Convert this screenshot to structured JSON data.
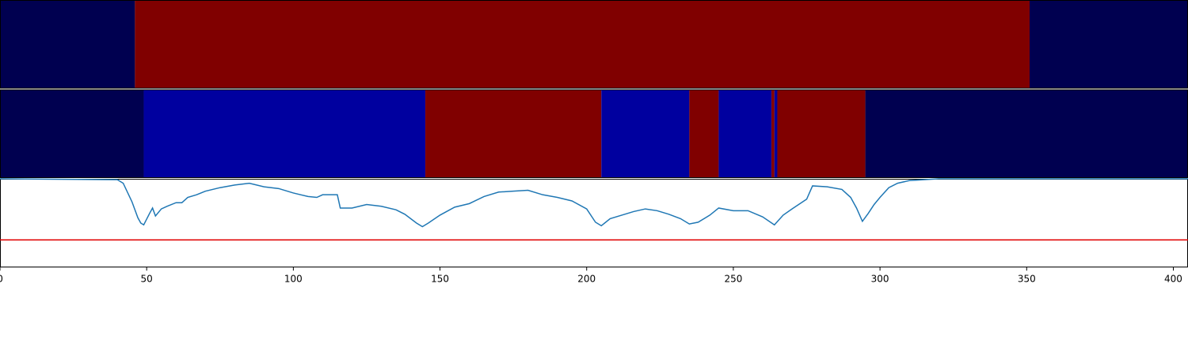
{
  "chart_data": [
    {
      "type": "segments",
      "xlim": [
        0,
        405
      ],
      "starts": [
        0,
        46,
        351
      ],
      "ends": [
        46,
        351,
        405
      ],
      "colors": [
        "#000050",
        "#800000",
        "#000050"
      ]
    },
    {
      "type": "segments",
      "xlim": [
        0,
        405
      ],
      "starts": [
        0,
        49,
        145,
        205,
        235,
        245,
        263,
        264,
        265,
        295
      ],
      "ends": [
        49,
        145,
        205,
        235,
        245,
        263,
        264,
        265,
        295,
        405
      ],
      "colors": [
        "#000050",
        "#00009f",
        "#800000",
        "#00009f",
        "#800000",
        "#00009f",
        "#800000",
        "#00009f",
        "#800000",
        "#000050"
      ]
    },
    {
      "type": "line",
      "xlim": [
        0,
        405
      ],
      "ylim": [
        0,
        1
      ],
      "xticks": [
        0,
        50,
        100,
        150,
        200,
        250,
        300,
        350,
        400
      ],
      "x": [
        0,
        40,
        42,
        45,
        47,
        48,
        49,
        51,
        52,
        53,
        55,
        57,
        60,
        62,
        64,
        67,
        70,
        75,
        80,
        85,
        90,
        95,
        100,
        105,
        108,
        110,
        115,
        116,
        120,
        125,
        130,
        135,
        138,
        142,
        144,
        146,
        150,
        155,
        160,
        165,
        170,
        175,
        180,
        185,
        190,
        195,
        200,
        203,
        205,
        208,
        212,
        216,
        220,
        224,
        228,
        232,
        235,
        238,
        242,
        245,
        250,
        255,
        260,
        264,
        267,
        270,
        275,
        277,
        282,
        287,
        290,
        292,
        294,
        296,
        298,
        300,
        303,
        306,
        310,
        320,
        405
      ],
      "series": [
        {
          "color": "#1f77b4",
          "values": [
            1.0,
            0.99,
            0.95,
            0.74,
            0.56,
            0.5,
            0.48,
            0.61,
            0.67,
            0.58,
            0.66,
            0.69,
            0.73,
            0.73,
            0.79,
            0.82,
            0.86,
            0.9,
            0.93,
            0.95,
            0.91,
            0.89,
            0.84,
            0.8,
            0.79,
            0.82,
            0.82,
            0.67,
            0.67,
            0.71,
            0.69,
            0.65,
            0.6,
            0.5,
            0.46,
            0.5,
            0.59,
            0.68,
            0.72,
            0.8,
            0.85,
            0.86,
            0.87,
            0.82,
            0.79,
            0.75,
            0.66,
            0.51,
            0.47,
            0.55,
            0.59,
            0.63,
            0.66,
            0.64,
            0.6,
            0.55,
            0.49,
            0.51,
            0.59,
            0.67,
            0.64,
            0.64,
            0.57,
            0.48,
            0.59,
            0.66,
            0.77,
            0.92,
            0.91,
            0.88,
            0.79,
            0.67,
            0.52,
            0.61,
            0.71,
            0.79,
            0.9,
            0.95,
            0.98,
            1.0,
            1.0
          ]
        }
      ],
      "hline": {
        "value": 0.31,
        "color": "#e00000"
      }
    }
  ]
}
